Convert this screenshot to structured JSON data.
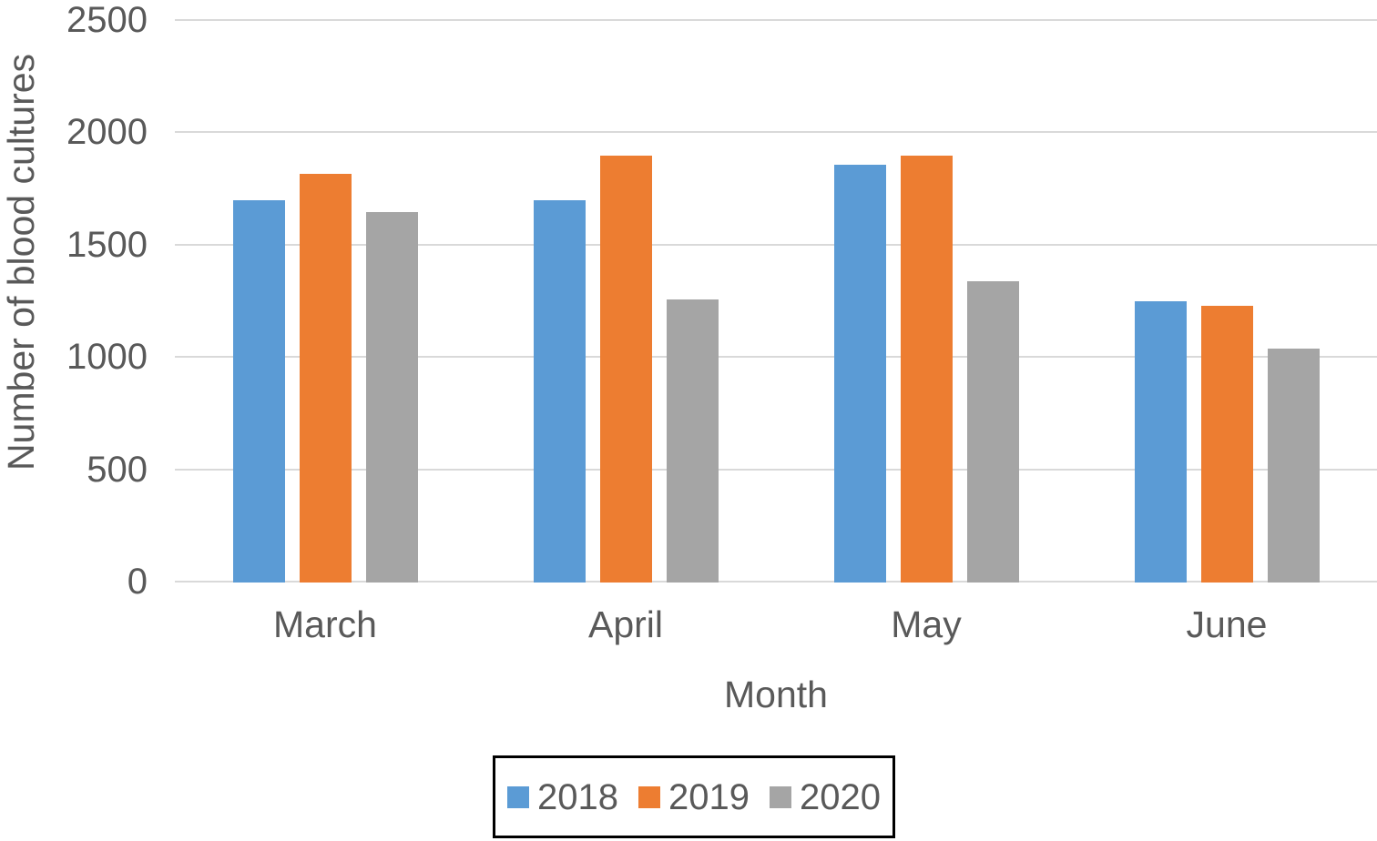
{
  "chart_data": {
    "type": "bar",
    "title": "",
    "xlabel": "Month",
    "ylabel": "Number of blood cultures",
    "categories": [
      "March",
      "April",
      "May",
      "June"
    ],
    "series": [
      {
        "name": "2018",
        "color": "#5B9BD5",
        "values": [
          1700,
          1700,
          1860,
          1250
        ]
      },
      {
        "name": "2019",
        "color": "#ED7D31",
        "values": [
          1820,
          1900,
          1900,
          1230
        ]
      },
      {
        "name": "2020",
        "color": "#A5A5A5",
        "values": [
          1650,
          1260,
          1340,
          1040
        ]
      }
    ],
    "ylim": [
      0,
      2500
    ],
    "yticks": [
      0,
      500,
      1000,
      1500,
      2000,
      2500
    ],
    "grid": "horizontal",
    "legend_position": "bottom",
    "legend_border": true
  },
  "colors": {
    "background": "#FFFFFF",
    "text": "#595959",
    "gridline": "#D9D9D9",
    "legend_border": "#000000",
    "series_2018": "#5B9BD5",
    "series_2019": "#ED7D31",
    "series_2020": "#A5A5A5"
  }
}
